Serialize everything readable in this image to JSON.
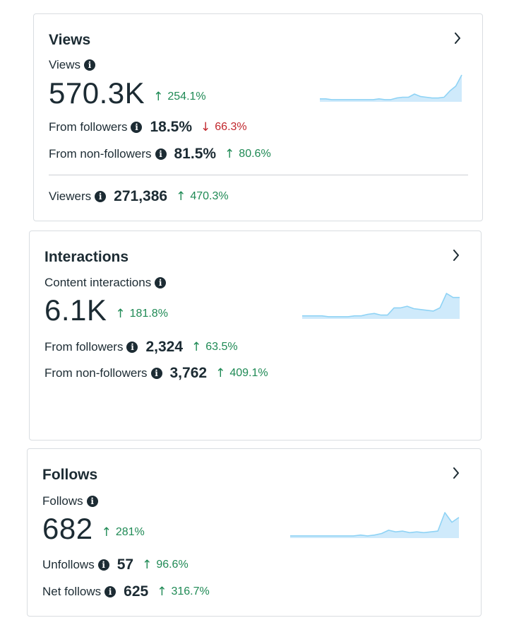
{
  "colors": {
    "positive": "#1f8a55",
    "negative": "#c1272d",
    "sparkline_stroke": "#8fd3f5",
    "sparkline_fill": "#cfeafb"
  },
  "icons": {
    "info": "info-icon",
    "chevron": "chevron-right-icon"
  },
  "views": {
    "title": "Views",
    "metric_label": "Views",
    "metric_value": "570.3K",
    "metric_delta": "254.1%",
    "from_followers_label": "From followers",
    "from_followers_value": "18.5%",
    "from_followers_delta": "66.3%",
    "from_non_followers_label": "From non-followers",
    "from_non_followers_value": "81.5%",
    "from_non_followers_delta": "80.6%",
    "viewers_label": "Viewers",
    "viewers_value": "271,386",
    "viewers_delta": "470.3%"
  },
  "interactions": {
    "title": "Interactions",
    "metric_label": "Content interactions",
    "metric_value": "6.1K",
    "metric_delta": "181.8%",
    "from_followers_label": "From followers",
    "from_followers_value": "2,324",
    "from_followers_delta": "63.5%",
    "from_non_followers_label": "From non-followers",
    "from_non_followers_value": "3,762",
    "from_non_followers_delta": "409.1%"
  },
  "follows": {
    "title": "Follows",
    "metric_label": "Follows",
    "metric_value": "682",
    "metric_delta": "281%",
    "unfollows_label": "Unfollows",
    "unfollows_value": "57",
    "unfollows_delta": "96.6%",
    "net_follows_label": "Net follows",
    "net_follows_value": "625",
    "net_follows_delta": "316.7%"
  },
  "sparklines": {
    "views": [
      2,
      2,
      1,
      1,
      1,
      1,
      1,
      1,
      1,
      1,
      2,
      1,
      1,
      3,
      4,
      4,
      8,
      5,
      4,
      3,
      3,
      4,
      12,
      18,
      32
    ],
    "interactions": [
      2,
      2,
      2,
      2,
      1,
      1,
      1,
      1,
      2,
      2,
      4,
      5,
      3,
      3,
      12,
      12,
      14,
      11,
      10,
      9,
      8,
      12,
      30,
      25,
      25
    ],
    "follows": [
      1,
      1,
      1,
      1,
      1,
      1,
      1,
      1,
      1,
      1,
      2,
      1,
      2,
      4,
      8,
      6,
      7,
      5,
      6,
      5,
      6,
      7,
      30,
      18,
      24
    ]
  }
}
